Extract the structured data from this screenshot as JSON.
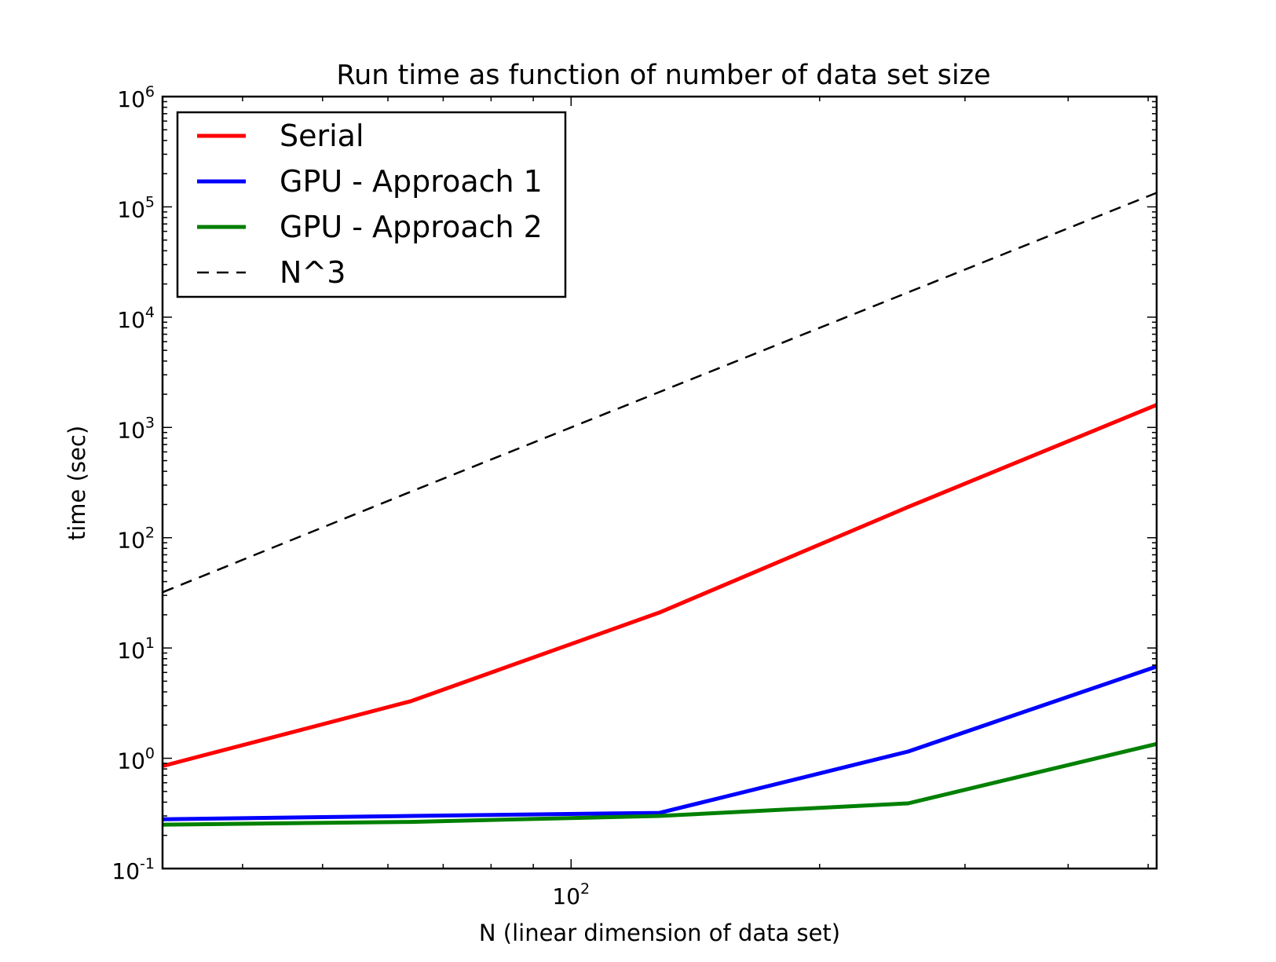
{
  "chart_data": {
    "type": "line",
    "title": "Run time as function of number of data set size",
    "xlabel": "N (linear dimension of data set)",
    "ylabel": "time (sec)",
    "xscale": "log",
    "yscale": "log",
    "xlim": [
      32,
      512
    ],
    "ylim": [
      0.1,
      1000000
    ],
    "x_ticks": [
      {
        "value": 100,
        "base": "10",
        "exp": "2"
      }
    ],
    "y_ticks": [
      {
        "value": 0.1,
        "base": "10",
        "exp": "-1"
      },
      {
        "value": 1,
        "base": "10",
        "exp": "0"
      },
      {
        "value": 10,
        "base": "10",
        "exp": "1"
      },
      {
        "value": 100,
        "base": "10",
        "exp": "2"
      },
      {
        "value": 1000,
        "base": "10",
        "exp": "3"
      },
      {
        "value": 10000,
        "base": "10",
        "exp": "4"
      },
      {
        "value": 100000,
        "base": "10",
        "exp": "5"
      },
      {
        "value": 1000000,
        "base": "10",
        "exp": "6"
      }
    ],
    "grid": false,
    "legend_position": "top-left",
    "series": [
      {
        "name": "Serial",
        "color": "#ff0000",
        "style": "solid",
        "x": [
          32,
          64,
          128,
          256,
          512
        ],
        "y": [
          0.85,
          3.3,
          21,
          190,
          1600
        ]
      },
      {
        "name": "GPU - Approach 1",
        "color": "#0000ff",
        "style": "solid",
        "x": [
          32,
          64,
          128,
          256,
          512
        ],
        "y": [
          0.28,
          0.3,
          0.32,
          1.15,
          6.8
        ]
      },
      {
        "name": "GPU - Approach 2",
        "color": "#008000",
        "style": "solid",
        "x": [
          32,
          64,
          128,
          256,
          512
        ],
        "y": [
          0.25,
          0.265,
          0.3,
          0.39,
          1.35
        ]
      },
      {
        "name": "N^3",
        "color": "#000000",
        "style": "dashed",
        "x": [
          32,
          64,
          128,
          256,
          512
        ],
        "y": [
          32,
          262,
          2097,
          16777,
          134217
        ]
      }
    ]
  }
}
